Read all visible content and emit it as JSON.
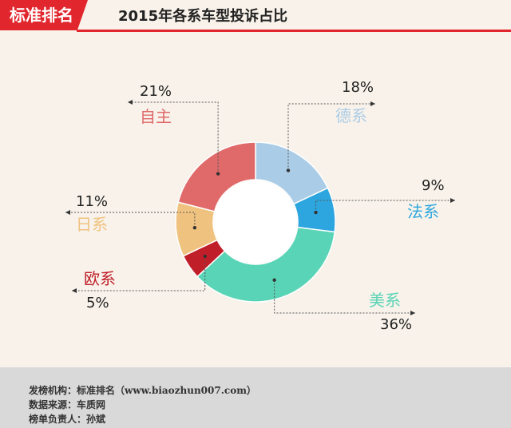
{
  "header": {
    "brand": "标准排名",
    "title": "2015年各系车型投诉占比"
  },
  "chart_data": {
    "type": "pie",
    "title": "2015年各系车型投诉占比",
    "labels": [
      "德系",
      "法系",
      "美系",
      "欧系",
      "日系",
      "自主"
    ],
    "values": [
      18,
      9,
      36,
      5,
      11,
      21
    ],
    "value_labels": [
      "18%",
      "9%",
      "36%",
      "5%",
      "11%",
      "21%"
    ],
    "colors": [
      "#abcce6",
      "#2da6df",
      "#5ad4b6",
      "#c01e29",
      "#efc27f",
      "#e0696a"
    ],
    "donut": true
  },
  "footer": {
    "publisher": "发榜机构：标准排名（www.biaozhun007.com）",
    "source": "数据来源：车质网",
    "editor": "榜单负责人：孙斌"
  }
}
